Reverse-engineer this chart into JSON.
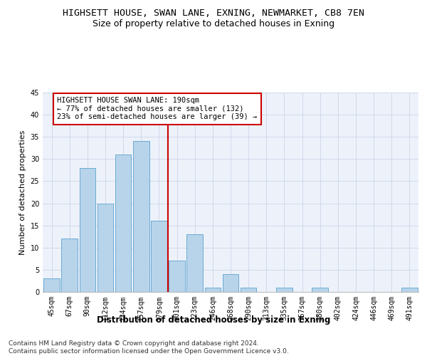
{
  "title": "HIGHSETT HOUSE, SWAN LANE, EXNING, NEWMARKET, CB8 7EN",
  "subtitle": "Size of property relative to detached houses in Exning",
  "xlabel": "Distribution of detached houses by size in Exning",
  "ylabel": "Number of detached properties",
  "categories": [
    "45sqm",
    "67sqm",
    "90sqm",
    "112sqm",
    "134sqm",
    "157sqm",
    "179sqm",
    "201sqm",
    "223sqm",
    "246sqm",
    "268sqm",
    "290sqm",
    "313sqm",
    "335sqm",
    "357sqm",
    "380sqm",
    "402sqm",
    "424sqm",
    "446sqm",
    "469sqm",
    "491sqm"
  ],
  "values": [
    3,
    12,
    28,
    20,
    31,
    34,
    16,
    7,
    13,
    1,
    4,
    1,
    0,
    1,
    0,
    1,
    0,
    0,
    0,
    0,
    1
  ],
  "bar_color": "#b8d4ea",
  "bar_edge_color": "#6aaad4",
  "grid_color": "#d0d8ea",
  "background_color": "#edf2fa",
  "vline_color": "#cc0000",
  "annotation_text": "HIGHSETT HOUSE SWAN LANE: 190sqm\n← 77% of detached houses are smaller (132)\n23% of semi-detached houses are larger (39) →",
  "annotation_box_color": "#cc0000",
  "ylim": [
    0,
    45
  ],
  "yticks": [
    0,
    5,
    10,
    15,
    20,
    25,
    30,
    35,
    40,
    45
  ],
  "footnote": "Contains HM Land Registry data © Crown copyright and database right 2024.\nContains public sector information licensed under the Open Government Licence v3.0.",
  "title_fontsize": 9.5,
  "subtitle_fontsize": 9,
  "xlabel_fontsize": 8.5,
  "ylabel_fontsize": 8,
  "tick_fontsize": 7,
  "annotation_fontsize": 7.5,
  "footnote_fontsize": 6.5
}
